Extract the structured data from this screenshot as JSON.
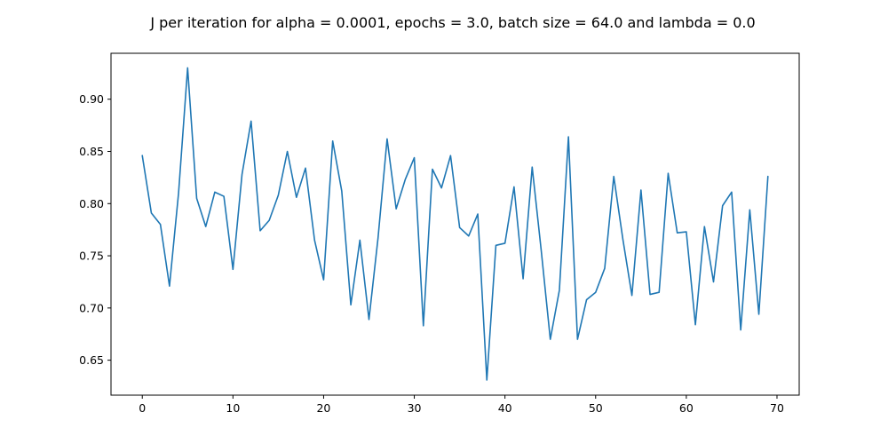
{
  "chart_data": {
    "type": "line",
    "title": "J per iteration for alpha = 0.0001, epochs = 3.0, batch size = 64.0 and lambda = 0.0",
    "xlabel": "",
    "ylabel": "",
    "xlim": [
      -3.45,
      72.45
    ],
    "ylim": [
      0.6165,
      0.944
    ],
    "xticks": [
      0,
      10,
      20,
      30,
      40,
      50,
      60,
      70
    ],
    "yticks": [
      0.65,
      0.7,
      0.75,
      0.8,
      0.85,
      0.9
    ],
    "ytick_labels": [
      "0.65",
      "0.70",
      "0.75",
      "0.80",
      "0.85",
      "0.90"
    ],
    "xtick_labels": [
      "0",
      "10",
      "20",
      "30",
      "40",
      "50",
      "60",
      "70"
    ],
    "grid": false,
    "line_color": "#1f77b4",
    "series": [
      {
        "x": [
          0,
          1,
          2,
          3,
          4,
          5,
          6,
          7,
          8,
          9,
          10,
          11,
          12,
          13,
          14,
          15,
          16,
          17,
          18,
          19,
          20,
          21,
          22,
          23,
          24,
          25,
          26,
          27,
          28,
          29,
          30,
          31,
          32,
          33,
          34,
          35,
          36,
          37,
          38,
          39,
          40,
          41,
          42,
          43,
          44,
          45,
          46,
          47,
          48,
          49,
          50,
          51,
          52,
          53,
          54,
          55,
          56,
          57,
          58,
          59,
          60,
          61,
          62,
          63,
          64,
          65,
          66,
          67,
          68,
          69
        ],
        "values": [
          0.846,
          0.791,
          0.78,
          0.721,
          0.81,
          0.93,
          0.805,
          0.778,
          0.811,
          0.807,
          0.737,
          0.828,
          0.879,
          0.774,
          0.784,
          0.808,
          0.85,
          0.806,
          0.834,
          0.765,
          0.727,
          0.86,
          0.812,
          0.703,
          0.765,
          0.689,
          0.767,
          0.862,
          0.795,
          0.823,
          0.844,
          0.683,
          0.833,
          0.815,
          0.846,
          0.777,
          0.769,
          0.79,
          0.631,
          0.76,
          0.762,
          0.816,
          0.728,
          0.835,
          0.755,
          0.67,
          0.717,
          0.864,
          0.67,
          0.708,
          0.715,
          0.738,
          0.826,
          0.766,
          0.712,
          0.813,
          0.713,
          0.715,
          0.829,
          0.772,
          0.773,
          0.684,
          0.778,
          0.725,
          0.798,
          0.811,
          0.679,
          0.794,
          0.694,
          0.826
        ]
      }
    ]
  }
}
